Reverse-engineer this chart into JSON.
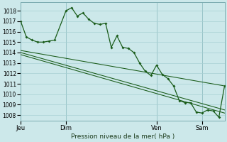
{
  "background_color": "#cce8ea",
  "grid_color": "#a8d0d4",
  "line_color": "#1a5c1a",
  "ylim": [
    1007.5,
    1018.8
  ],
  "yticks": [
    1008,
    1009,
    1010,
    1011,
    1012,
    1013,
    1014,
    1015,
    1016,
    1017,
    1018
  ],
  "xtick_labels": [
    "Jeu",
    "Dim",
    "Ven",
    "Sam"
  ],
  "xtick_positions": [
    0,
    24,
    72,
    96
  ],
  "vline_positions": [
    0,
    24,
    72,
    96
  ],
  "xlabel": "Pression niveau de la mer( hPa )",
  "series1_x": [
    0,
    3,
    6,
    9,
    12,
    15,
    18,
    24,
    27,
    30,
    33,
    36,
    39,
    42,
    45,
    48,
    51,
    54,
    57,
    60,
    63,
    66,
    69,
    72,
    75,
    78,
    81,
    84,
    87,
    90,
    93,
    96,
    99,
    102,
    105,
    108
  ],
  "series1_y": [
    1017.0,
    1015.5,
    1015.2,
    1015.0,
    1015.0,
    1015.1,
    1015.2,
    1018.0,
    1018.3,
    1017.5,
    1017.8,
    1017.2,
    1016.8,
    1016.7,
    1016.8,
    1014.5,
    1015.6,
    1014.5,
    1014.4,
    1014.0,
    1013.0,
    1012.2,
    1011.8,
    1012.8,
    1011.9,
    1011.5,
    1010.8,
    1009.4,
    1009.2,
    1009.2,
    1008.3,
    1008.2,
    1008.5,
    1008.4,
    1007.8,
    1010.8
  ],
  "series2_x": [
    0,
    108
  ],
  "series2_y": [
    1014.2,
    1010.8
  ],
  "series3_x": [
    0,
    108
  ],
  "series3_y": [
    1013.8,
    1008.2
  ],
  "series4_x": [
    0,
    108
  ],
  "series4_y": [
    1014.0,
    1008.5
  ],
  "xlim": [
    0,
    108
  ],
  "marker": "D",
  "markersize": 2.0,
  "linewidth": 0.9
}
